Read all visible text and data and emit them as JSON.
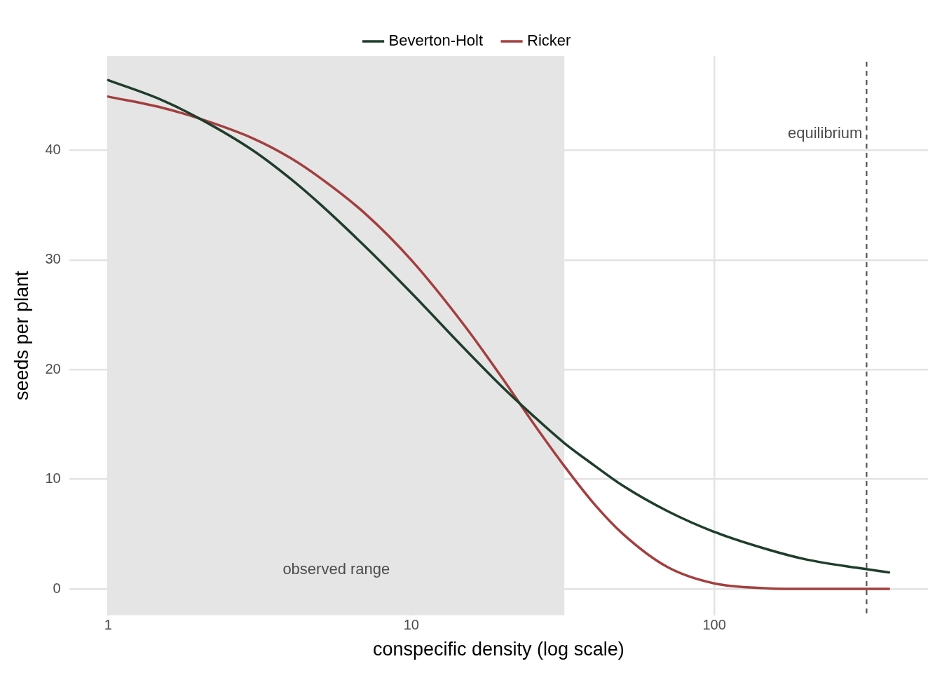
{
  "chart_data": {
    "type": "line",
    "xlabel": "conspecific density (log scale)",
    "ylabel": "seeds per plant",
    "log": "x",
    "grid": true,
    "legend": "top",
    "marker": "none",
    "line_style": "solid",
    "xlim": [
      0.743,
      507
    ],
    "xticks": [
      1,
      10,
      100
    ],
    "ylim": [
      -2.4,
      48.6
    ],
    "yticks": [
      0,
      10,
      20,
      30,
      40
    ],
    "x": [
      1,
      1.5,
      2,
      3,
      4,
      5,
      7,
      10,
      15,
      20,
      25,
      32,
      40,
      50,
      70,
      100,
      150,
      200,
      300,
      377
    ],
    "series": [
      {
        "name": "Beverton-Holt",
        "color": "#1f3d2b",
        "values": [
          46.4,
          44.6,
          42.9,
          40.0,
          37.4,
          35.1,
          31.3,
          27.0,
          21.9,
          18.4,
          15.9,
          13.3,
          11.3,
          9.4,
          7.1,
          5.2,
          3.6,
          2.7,
          1.9,
          1.5
        ]
      },
      {
        "name": "Ricker",
        "color": "#a33f3f",
        "values": [
          44.9,
          43.9,
          42.9,
          41.1,
          39.3,
          37.5,
          34.3,
          30.0,
          24.0,
          19.2,
          15.3,
          11.2,
          7.8,
          5.0,
          2.0,
          0.5,
          0.06,
          0,
          0,
          0
        ]
      }
    ],
    "bands": [
      {
        "axis": "x",
        "from": 1,
        "to": 32,
        "label": "observed range",
        "color": "#e5e5e5"
      }
    ],
    "ref_lines": [
      {
        "axis": "x",
        "value": 318,
        "label": "equilibrium",
        "line_style": "dashed",
        "color": "#555555"
      }
    ]
  }
}
